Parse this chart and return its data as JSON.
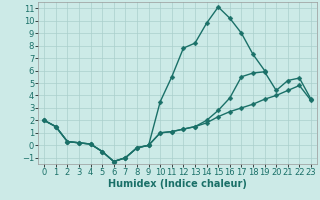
{
  "xlabel": "Humidex (Indice chaleur)",
  "bg_color": "#cceae7",
  "line_color": "#1a7068",
  "grid_color": "#aacfcc",
  "xlim": [
    -0.5,
    23.5
  ],
  "ylim": [
    -1.5,
    11.5
  ],
  "xticks": [
    0,
    1,
    2,
    3,
    4,
    5,
    6,
    7,
    8,
    9,
    10,
    11,
    12,
    13,
    14,
    15,
    16,
    17,
    18,
    19,
    20,
    21,
    22,
    23
  ],
  "yticks": [
    -1,
    0,
    1,
    2,
    3,
    4,
    5,
    6,
    7,
    8,
    9,
    10,
    11
  ],
  "line1_x": [
    0,
    1,
    2,
    3,
    4,
    5,
    6,
    7,
    8,
    9,
    10,
    11,
    12,
    13,
    14,
    15,
    16,
    17,
    18,
    19
  ],
  "line1_y": [
    2.0,
    1.5,
    0.3,
    0.2,
    0.1,
    -0.5,
    -1.3,
    -1.0,
    -0.2,
    0.0,
    3.5,
    5.5,
    7.8,
    8.2,
    9.8,
    11.1,
    10.2,
    9.0,
    7.3,
    6.0
  ],
  "line2_x": [
    0,
    1,
    2,
    3,
    4,
    5,
    6,
    7,
    8,
    9,
    10,
    11,
    12,
    13,
    14,
    15,
    16,
    17,
    18,
    19,
    20,
    21,
    22,
    23
  ],
  "line2_y": [
    2.0,
    1.5,
    0.3,
    0.2,
    0.1,
    -0.5,
    -1.3,
    -1.0,
    -0.2,
    0.0,
    1.0,
    1.1,
    1.3,
    1.5,
    1.8,
    2.3,
    2.7,
    3.0,
    3.3,
    3.7,
    4.0,
    4.4,
    4.8,
    3.6
  ],
  "line3_x": [
    0,
    1,
    2,
    3,
    4,
    5,
    6,
    7,
    8,
    9,
    10,
    11,
    12,
    13,
    14,
    15,
    16,
    17,
    18,
    19,
    20,
    21,
    22,
    23
  ],
  "line3_y": [
    2.0,
    1.5,
    0.3,
    0.2,
    0.1,
    -0.5,
    -1.3,
    -1.0,
    -0.2,
    0.0,
    1.0,
    1.1,
    1.3,
    1.5,
    2.0,
    2.8,
    3.8,
    5.5,
    5.8,
    5.9,
    4.4,
    5.2,
    5.4,
    3.7
  ],
  "marker": "D",
  "marker_size": 2.5,
  "line_width": 1.0,
  "xlabel_fontsize": 7,
  "tick_fontsize": 6
}
